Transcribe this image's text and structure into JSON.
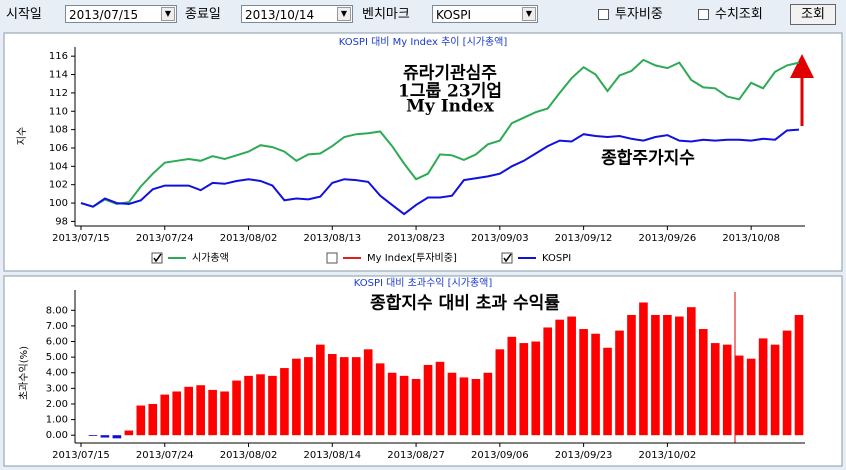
{
  "toolbar": {
    "start_label": "시작일",
    "start_date": "2013/07/15",
    "end_label": "종료일",
    "end_date": "2013/10/14",
    "benchmark_label": "벤치마크",
    "benchmark": "KOSPI",
    "weight_check": "투자비중",
    "value_check": "수치조회",
    "search_button": "조회"
  },
  "chart_data": [
    {
      "type": "line",
      "title": "KOSPI 대비 My Index 추이 [시가총액]",
      "y_label": "지수",
      "annotations": [
        "쥬라기관심주",
        "1그룹 23기업",
        "My Index",
        "종합주가지수"
      ],
      "categories": [
        "2013/07/15",
        null,
        null,
        null,
        null,
        null,
        null,
        "2013/07/24",
        null,
        null,
        null,
        null,
        null,
        null,
        "2013/08/02",
        null,
        null,
        null,
        null,
        null,
        null,
        "2013/08/13",
        null,
        null,
        null,
        null,
        null,
        null,
        "2013/08/23",
        null,
        null,
        null,
        null,
        null,
        null,
        "2013/09/03",
        null,
        null,
        null,
        null,
        null,
        null,
        "2013/09/12",
        null,
        null,
        null,
        null,
        null,
        null,
        "2013/09/26",
        null,
        null,
        null,
        null,
        null,
        null,
        "2013/10/08",
        null,
        null,
        null,
        null
      ],
      "ylim": [
        97.5,
        117
      ],
      "yticks": [
        98,
        100,
        102,
        104,
        106,
        108,
        110,
        112,
        114,
        116
      ],
      "series": [
        {
          "name": "시가총액",
          "color": "#2eaa55",
          "checked": true,
          "values": [
            100.0,
            99.6,
            100.4,
            99.9,
            100.1,
            101.8,
            103.2,
            104.4,
            104.6,
            104.8,
            104.6,
            105.1,
            104.8,
            105.2,
            105.6,
            106.3,
            106.1,
            105.6,
            104.6,
            105.3,
            105.4,
            106.2,
            107.2,
            107.5,
            107.6,
            107.8,
            106.2,
            104.3,
            102.6,
            103.2,
            105.3,
            105.2,
            104.7,
            105.3,
            106.4,
            106.8,
            108.7,
            109.3,
            109.9,
            110.3,
            112.0,
            113.6,
            114.8,
            114.0,
            112.2,
            113.9,
            114.4,
            115.6,
            115.0,
            114.7,
            115.3,
            113.4,
            112.6,
            112.5,
            111.6,
            111.3,
            113.1,
            112.5,
            114.3,
            115.0,
            115.3
          ]
        },
        {
          "name": "My Index[투자비중]",
          "color": "#e02020",
          "checked": false,
          "values": [
            null,
            null,
            null,
            null,
            null,
            null,
            null,
            null,
            null,
            null,
            null,
            null,
            null,
            null,
            null,
            null,
            null,
            null,
            null,
            null,
            null,
            null,
            null,
            null,
            null,
            null,
            null,
            null,
            null,
            null,
            null,
            null,
            null,
            null,
            null,
            null,
            null,
            null,
            null,
            null,
            null,
            null,
            null,
            null,
            null,
            null,
            null,
            null,
            null,
            null,
            null,
            null,
            null,
            null,
            null,
            null,
            null,
            null,
            null,
            null,
            null
          ]
        },
        {
          "name": "KOSPI",
          "color": "#1010e0",
          "checked": true,
          "values": [
            100.0,
            99.6,
            100.5,
            100.0,
            99.9,
            100.3,
            101.5,
            101.9,
            101.9,
            101.9,
            101.4,
            102.2,
            102.1,
            102.4,
            102.6,
            102.4,
            101.9,
            100.3,
            100.5,
            100.4,
            100.7,
            102.2,
            102.6,
            102.5,
            102.3,
            100.8,
            99.8,
            98.8,
            99.8,
            100.6,
            100.6,
            100.8,
            102.5,
            102.7,
            102.9,
            103.2,
            104.0,
            104.6,
            105.4,
            106.2,
            106.8,
            106.7,
            107.5,
            107.3,
            107.2,
            107.3,
            107.0,
            106.8,
            107.2,
            107.4,
            106.8,
            106.7,
            106.9,
            106.8,
            106.9,
            106.9,
            106.8,
            107.0,
            106.9,
            107.9,
            108.0
          ]
        }
      ]
    },
    {
      "type": "bar",
      "title": "KOSPI 대비 초과수익 [시가총액]",
      "y_label": "초과수익(%)",
      "annotations": [
        "종합지수 대비 초과 수익률"
      ],
      "categories": [
        "2013/07/15",
        null,
        null,
        null,
        null,
        null,
        null,
        "2013/07/24",
        null,
        null,
        null,
        null,
        null,
        null,
        "2013/08/02",
        null,
        null,
        null,
        null,
        null,
        null,
        "2013/08/14",
        null,
        null,
        null,
        null,
        null,
        null,
        "2013/08/27",
        null,
        null,
        null,
        null,
        null,
        null,
        "2013/09/06",
        null,
        null,
        null,
        null,
        null,
        null,
        "2013/09/23",
        null,
        null,
        null,
        null,
        null,
        null,
        "2013/10/02",
        null,
        null,
        null,
        null,
        null,
        null,
        null,
        null,
        null,
        null,
        null
      ],
      "color": "#ff0000",
      "ylim": [
        -0.5,
        9.3
      ],
      "yticks": [
        {
          "value": 0,
          "label": "0.00"
        },
        {
          "value": 1,
          "label": "1.00"
        },
        {
          "value": 2,
          "label": "2.00"
        },
        {
          "value": 3,
          "label": "3.00"
        },
        {
          "value": 4,
          "label": "4.00"
        },
        {
          "value": 5,
          "label": "5.00"
        },
        {
          "value": 6,
          "label": "6.00"
        },
        {
          "value": 7,
          "label": "7.00"
        },
        {
          "value": 8,
          "label": "8.00"
        }
      ],
      "values": [
        0,
        -0.05,
        -0.15,
        -0.2,
        0.3,
        1.9,
        2.0,
        2.6,
        2.8,
        3.1,
        3.2,
        2.9,
        2.8,
        3.5,
        3.8,
        3.9,
        3.8,
        4.3,
        4.9,
        5.0,
        5.8,
        5.2,
        5.0,
        5.0,
        5.5,
        4.6,
        4.0,
        3.8,
        3.6,
        4.5,
        4.7,
        4.0,
        3.7,
        3.6,
        4.0,
        5.5,
        6.3,
        5.9,
        6.0,
        6.9,
        7.4,
        7.6,
        6.8,
        6.5,
        5.6,
        6.7,
        7.7,
        8.5,
        7.7,
        7.7,
        7.6,
        8.2,
        6.8,
        5.9,
        5.8,
        5.1,
        4.9,
        6.2,
        5.8,
        6.7,
        7.7
      ]
    }
  ]
}
